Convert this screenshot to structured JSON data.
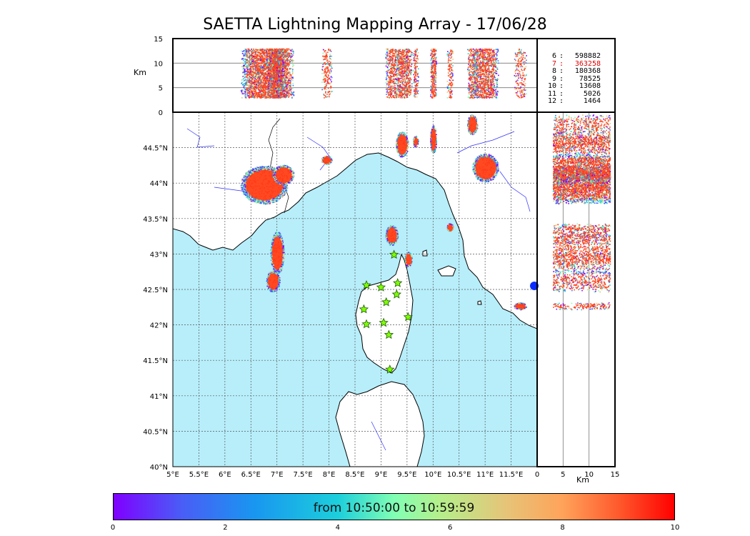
{
  "title": "SAETTA Lightning Mapping Array - 17/06/28",
  "stats": [
    {
      "level": "6",
      "count": "598882",
      "highlight": false
    },
    {
      "level": "7",
      "count": "363258",
      "highlight": true
    },
    {
      "level": "8",
      "count": "180368",
      "highlight": false
    },
    {
      "level": "9",
      "count": "78525",
      "highlight": false
    },
    {
      "level": "10",
      "count": "13608",
      "highlight": false
    },
    {
      "level": "11",
      "count": "5026",
      "highlight": false
    },
    {
      "level": "12",
      "count": "1464",
      "highlight": false
    }
  ],
  "colorbar": {
    "label": "from 10:50:00 to 10:59:59",
    "ticks": [
      "0",
      "2",
      "4",
      "6",
      "8",
      "10"
    ]
  },
  "colors": {
    "sea": "#b7eefa",
    "land": "#ffffff",
    "lightning_main": "#ff4a22",
    "station": "#7fff00"
  },
  "chart_data": [
    {
      "type": "scatter",
      "panel": "map",
      "xlim": [
        5,
        12
      ],
      "ylim": [
        40,
        45
      ],
      "x_ticks": [
        "5°E",
        "5.5°E",
        "6°E",
        "6.5°E",
        "7°E",
        "7.5°E",
        "8°E",
        "8.5°E",
        "9°E",
        "9.5°E",
        "10°E",
        "10.5°E",
        "11°E",
        "11.5°E"
      ],
      "y_ticks": [
        "40°N",
        "40.5°N",
        "41°N",
        "41.5°N",
        "42°N",
        "42.5°N",
        "43°N",
        "43.5°N",
        "44°N",
        "44.5°N"
      ],
      "grid": true,
      "stations": [
        [
          8.72,
          42.56
        ],
        [
          9.0,
          42.53
        ],
        [
          9.32,
          42.59
        ],
        [
          9.25,
          42.99
        ],
        [
          9.1,
          42.32
        ],
        [
          9.3,
          42.43
        ],
        [
          8.67,
          42.22
        ],
        [
          8.72,
          42.01
        ],
        [
          9.05,
          42.03
        ],
        [
          9.15,
          41.86
        ],
        [
          9.52,
          42.11
        ],
        [
          9.17,
          41.37
        ]
      ],
      "clusters": [
        {
          "lon": 6.75,
          "lat": 43.98,
          "rx": 0.45,
          "ry": 0.27
        },
        {
          "lon": 7.12,
          "lat": 44.12,
          "rx": 0.2,
          "ry": 0.14
        },
        {
          "lon": 7.0,
          "lat": 43.02,
          "rx": 0.13,
          "ry": 0.3
        },
        {
          "lon": 6.92,
          "lat": 42.62,
          "rx": 0.13,
          "ry": 0.15
        },
        {
          "lon": 7.95,
          "lat": 44.33,
          "rx": 0.1,
          "ry": 0.06
        },
        {
          "lon": 9.4,
          "lat": 44.55,
          "rx": 0.12,
          "ry": 0.18
        },
        {
          "lon": 9.66,
          "lat": 44.59,
          "rx": 0.05,
          "ry": 0.08
        },
        {
          "lon": 10.0,
          "lat": 44.62,
          "rx": 0.06,
          "ry": 0.2
        },
        {
          "lon": 10.75,
          "lat": 44.83,
          "rx": 0.1,
          "ry": 0.14
        },
        {
          "lon": 11.0,
          "lat": 44.22,
          "rx": 0.25,
          "ry": 0.2
        },
        {
          "lon": 9.2,
          "lat": 43.27,
          "rx": 0.12,
          "ry": 0.14
        },
        {
          "lon": 9.52,
          "lat": 42.93,
          "rx": 0.07,
          "ry": 0.1
        },
        {
          "lon": 10.32,
          "lat": 43.38,
          "rx": 0.06,
          "ry": 0.06
        },
        {
          "lon": 11.67,
          "lat": 42.27,
          "rx": 0.12,
          "ry": 0.05
        }
      ]
    },
    {
      "type": "scatter",
      "panel": "longitude-altitude",
      "xlim": [
        5,
        12
      ],
      "ylim": [
        0,
        15
      ],
      "ylabel": "Km",
      "y_ticks": [
        "0",
        "5",
        "10",
        "15"
      ]
    },
    {
      "type": "scatter",
      "panel": "altitude-latitude",
      "xlim": [
        0,
        15
      ],
      "ylim": [
        40,
        45
      ],
      "xlabel": "Km",
      "x_ticks": [
        "0",
        "5",
        "10",
        "15"
      ]
    }
  ]
}
